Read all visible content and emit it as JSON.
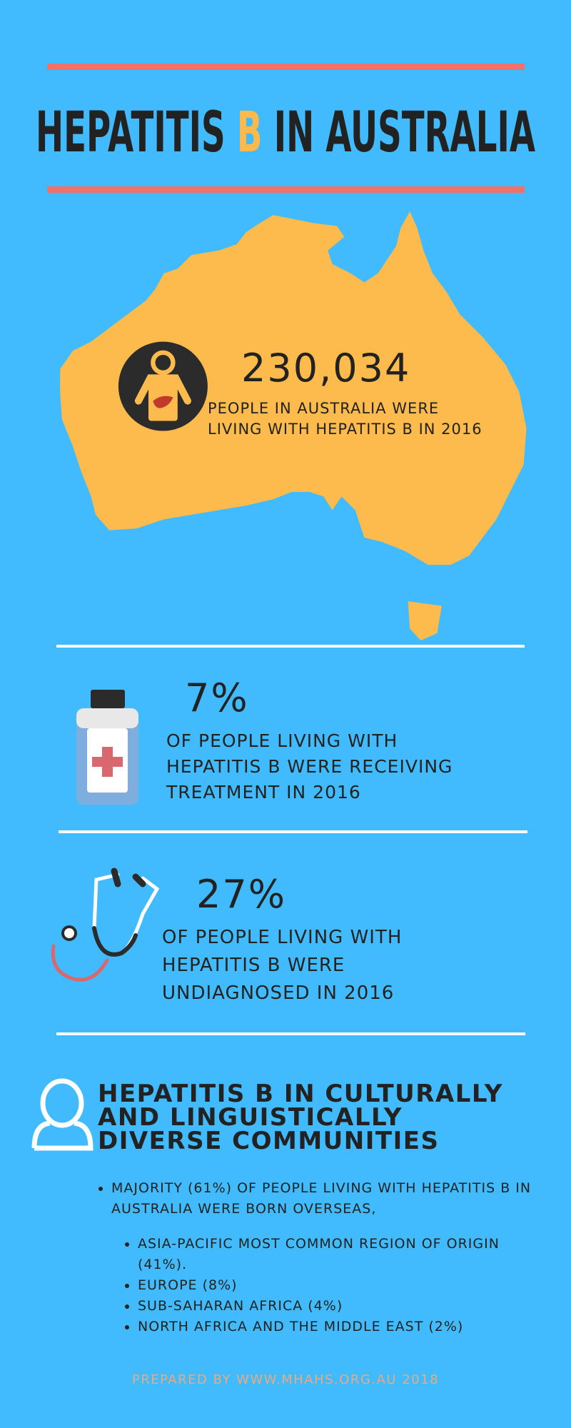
{
  "header": {
    "title": [
      "HEPATITIS ",
      "B",
      " IN AUSTRALIA"
    ]
  },
  "stats": [
    {
      "value": "230,034",
      "lines": [
        "PEOPLE IN AUSTRALIA WERE",
        "LIVING WITH HEPATITIS B IN 2016"
      ]
    },
    {
      "value": "7%",
      "lines": [
        "OF PEOPLE LIVING WITH",
        "HEPATITIS B WERE RECEIVING",
        "TREATMENT IN 2016"
      ]
    },
    {
      "value": "27%",
      "lines": [
        "OF PEOPLE LIVING WITH",
        "HEPATITIS B WERE",
        "UNDIAGNOSED IN 2016"
      ]
    }
  ],
  "section": {
    "heading": [
      "HEPATITIS B IN CULTURALLY",
      "AND LINGUISTICALLY",
      "DIVERSE COMMUNITIES"
    ],
    "bullets": [
      {
        "text": "MAJORITY (61%) OF PEOPLE LIVING WITH HEPATITIS B IN AUSTRALIA WERE BORN OVERSEAS,",
        "sub": [
          "ASIA-PACIFIC MOST COMMON REGION OF ORIGIN  (41%).",
          "EUROPE (8%)",
          "SUB-SAHARAN AFRICA (4%)",
          "NORTH AFRICA AND THE MIDDLE EAST (2%)"
        ]
      }
    ]
  },
  "footer": "PREPARED BY WWW.MHAHS.ORG.AU 2018"
}
